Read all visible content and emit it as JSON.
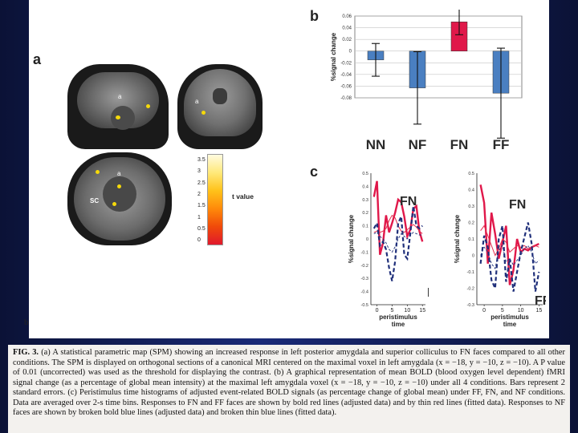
{
  "figure": {
    "panel_a_letter": "a",
    "panel_b_letter": "b",
    "panel_c_letter": "c",
    "bottom_left_letter": "b",
    "slice_labels": {
      "a1": "a",
      "a2": "a",
      "a3": "a",
      "sc": "SC"
    },
    "colorbar": {
      "label": "t value",
      "ticks": [
        "3.5",
        "3",
        "2.5",
        "2",
        "1.5",
        "1",
        "0.5",
        "0"
      ],
      "colors": [
        "#fffbe0",
        "#ffe97a",
        "#ffc21a",
        "#ff8a0a",
        "#f04a0a",
        "#e0182c"
      ]
    },
    "bar_line_color": "#1a2a60",
    "fitted_red": "#e23050",
    "red": "#e0184a",
    "blue": "#4a7fc1",
    "navy": "#1f2f7a"
  },
  "chart_data": [
    {
      "panel": "b",
      "type": "bar",
      "categories": [
        "NN",
        "NF",
        "FN",
        "FF"
      ],
      "values": [
        -0.015,
        -0.063,
        0.05,
        -0.072
      ],
      "errors": [
        0.028,
        0.062,
        0.022,
        0.077
      ],
      "colors": [
        "#4a7fc1",
        "#4a7fc1",
        "#e0184a",
        "#4a7fc1"
      ],
      "ylabel": "%signal change",
      "ylim": [
        -0.08,
        0.06
      ],
      "yticks": [
        "0.06",
        "0.04",
        "0.02",
        "0",
        "-0.02",
        "-0.04",
        "-0.06",
        "-0.08"
      ],
      "ytick_values": [
        0.06,
        0.04,
        0.02,
        0,
        -0.02,
        -0.04,
        -0.06,
        -0.08
      ]
    },
    {
      "panel": "c-left",
      "type": "line",
      "xlabel": "peristimulus time",
      "ylabel": "%signal change",
      "xlim": [
        -2,
        16
      ],
      "ylim": [
        -0.5,
        0.5
      ],
      "xticks": [
        "0",
        "5",
        "10",
        "15"
      ],
      "xtick_values": [
        0,
        5,
        10,
        15
      ],
      "yticks": [
        "0.5",
        "0.4",
        "0.3",
        "0.2",
        "0.1",
        "0",
        "-0.1",
        "-0.2",
        "-0.3",
        "-0.4",
        "-0.5"
      ],
      "ytick_values": [
        0.5,
        0.4,
        0.3,
        0.2,
        0.1,
        0,
        -0.1,
        -0.2,
        -0.3,
        -0.4,
        -0.5
      ],
      "annotations": [
        "FN",
        "NF"
      ],
      "x": [
        -1,
        0,
        1,
        2,
        3,
        4,
        5,
        6,
        7,
        8,
        9,
        10,
        11,
        12,
        13,
        14,
        15
      ],
      "series": [
        {
          "name": "FN adjusted",
          "style": "bold-red",
          "values": [
            0.32,
            0.44,
            -0.12,
            -0.03,
            0.18,
            0.05,
            0.12,
            0.2,
            0.3,
            0.28,
            0.17,
            0.02,
            0.07,
            0.23,
            0.25,
            0.06,
            -0.02
          ]
        },
        {
          "name": "FN fitted",
          "style": "thin-red",
          "values": [
            0.05,
            0.06,
            0.05,
            0.06,
            0.08,
            0.14,
            0.18,
            0.16,
            0.1,
            0.06,
            0.05,
            0.07,
            0.09,
            0.11,
            0.09,
            0.06,
            0.04
          ]
        },
        {
          "name": "NF adjusted",
          "style": "bold-blue-dash",
          "values": [
            0.08,
            0.12,
            -0.05,
            -0.02,
            -0.08,
            -0.22,
            -0.32,
            -0.17,
            0.12,
            0.17,
            -0.12,
            -0.15,
            0.04,
            0.25,
            0.1,
            0.08,
            0.1
          ]
        },
        {
          "name": "NF fitted",
          "style": "thin-blue-dash",
          "values": [
            0.04,
            0.05,
            0.02,
            0.0,
            -0.03,
            -0.08,
            -0.1,
            -0.06,
            0.0,
            0.04,
            0.02,
            0.0,
            0.03,
            0.05,
            0.04,
            0.03,
            0.03
          ]
        }
      ]
    },
    {
      "panel": "c-right",
      "type": "line",
      "xlabel": "peristimulus time",
      "ylabel": "%signal change",
      "xlim": [
        -2,
        16
      ],
      "ylim": [
        -0.3,
        0.5
      ],
      "xticks": [
        "0",
        "5",
        "10",
        "15"
      ],
      "xtick_values": [
        0,
        5,
        10,
        15
      ],
      "yticks": [
        "0.5",
        "0.4",
        "0.3",
        "0.2",
        "0.1",
        "0",
        "-0.1",
        "-0.2",
        "-0.3"
      ],
      "ytick_values": [
        0.5,
        0.4,
        0.3,
        0.2,
        0.1,
        0,
        -0.1,
        -0.2,
        -0.3
      ],
      "annotations": [
        "FN",
        "FF"
      ],
      "x": [
        -1,
        0,
        1,
        2,
        3,
        4,
        5,
        6,
        7,
        8,
        9,
        10,
        11,
        12,
        13,
        14,
        15
      ],
      "series": [
        {
          "name": "FN adjusted",
          "style": "bold-red",
          "values": [
            0.43,
            0.32,
            -0.05,
            0.26,
            0.13,
            -0.02,
            0.08,
            0.18,
            -0.18,
            -0.09,
            0.1,
            0.02,
            0.04,
            0.03,
            0.05,
            0.06,
            0.07
          ]
        },
        {
          "name": "FN fitted",
          "style": "thin-red",
          "values": [
            0.15,
            0.18,
            0.12,
            0.06,
            0.0,
            0.04,
            0.1,
            0.08,
            0.02,
            0.04,
            0.06,
            0.05,
            0.06,
            0.04,
            0.05,
            0.06,
            0.05
          ]
        },
        {
          "name": "FF adjusted",
          "style": "bold-blue-dash",
          "values": [
            -0.05,
            0.12,
            0.05,
            -0.15,
            -0.2,
            0.1,
            0.18,
            -0.16,
            -0.02,
            -0.22,
            -0.1,
            0.02,
            0.11,
            0.2,
            0.07,
            -0.22,
            -0.1
          ]
        },
        {
          "name": "FF fitted",
          "style": "thin-blue-dash",
          "values": [
            0.0,
            0.05,
            0.02,
            -0.05,
            -0.08,
            0.03,
            0.06,
            -0.04,
            -0.02,
            -0.06,
            -0.03,
            0.0,
            0.04,
            0.06,
            0.02,
            -0.05,
            -0.03
          ]
        }
      ]
    }
  ],
  "caption": {
    "fig_label": "FIG. 3.",
    "text": " (a) A statistical parametric map (SPM) showing an increased response in left posterior amygdala and superior colliculus to FN faces compared to all other conditions. The SPM is displayed on orthogonal sections of a canonical MRI centered on the maximal voxel in left amygdala (x = −18, y = −10, z = −10). A P value of 0.01 (uncorrected) was used as the threshold for displaying the contrast. (b) A graphical representation of mean BOLD (blood oxygen level dependent) fMRI signal change (as a percentage of global mean intensity) at the maximal left amygdala voxel (x = −18, y = −10, z = −10) under all 4 conditions. Bars represent 2 standard errors. (c) Peristimulus time histograms of adjusted event-related BOLD signals (as percentage change of global mean) under FF, FN, and NF conditions. Data are averaged over 2-s time bins. Responses to FN and FF faces are shown by bold red lines (adjusted data) and by thin red lines (fitted data). Responses to NF faces are shown by broken bold blue lines (adjusted data) and broken thin blue lines (fitted data)."
  }
}
